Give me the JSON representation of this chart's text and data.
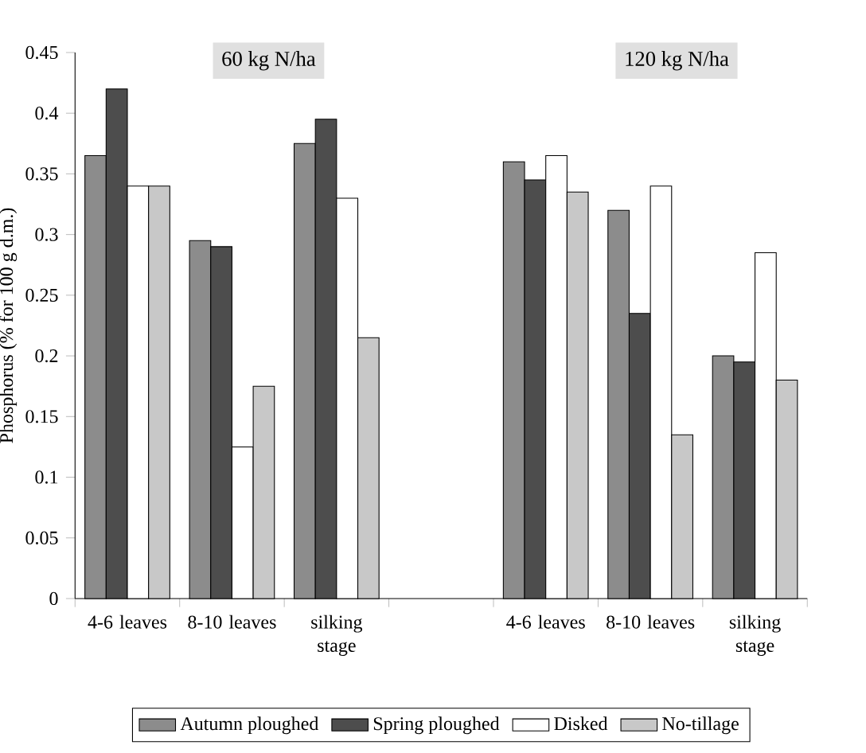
{
  "chart_data": {
    "type": "bar",
    "ylabel": "Phosphorus (% for 100 g d.m.)",
    "annotations": [
      "60 kg N/ha",
      "120 kg N/ha"
    ],
    "categories": [
      "4-6 leaves",
      "8-10 leaves",
      "silking stage",
      null,
      "4-6 leaves",
      "8-10 leaves",
      "silking stage"
    ],
    "series": [
      {
        "name": "Autumn ploughed",
        "color": "#8c8c8c",
        "values": [
          0.365,
          0.295,
          0.375,
          null,
          0.36,
          0.32,
          0.2
        ]
      },
      {
        "name": "Spring ploughed",
        "color": "#4d4d4d",
        "values": [
          0.42,
          0.29,
          0.395,
          null,
          0.345,
          0.235,
          0.195
        ]
      },
      {
        "name": "Disked",
        "color": "#ffffff",
        "values": [
          0.34,
          0.125,
          0.33,
          null,
          0.365,
          0.34,
          0.285
        ]
      },
      {
        "name": "No-tillage",
        "color": "#c8c8c8",
        "values": [
          0.34,
          0.175,
          0.215,
          null,
          0.335,
          0.135,
          0.18
        ]
      }
    ],
    "ylim": [
      0,
      0.45
    ],
    "yticks": [
      0,
      0.05,
      0.1,
      0.15,
      0.2,
      0.25,
      0.3,
      0.35,
      0.4,
      0.45
    ],
    "legend": "bottom"
  }
}
